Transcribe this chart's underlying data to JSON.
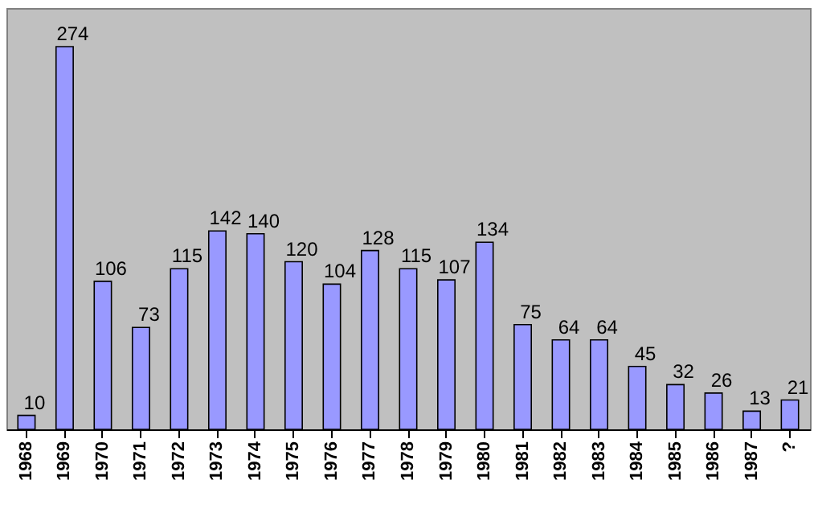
{
  "chart_data": {
    "type": "bar",
    "categories": [
      "1968",
      "1969",
      "1970",
      "1971",
      "1972",
      "1973",
      "1974",
      "1975",
      "1976",
      "1977",
      "1978",
      "1979",
      "1980",
      "1981",
      "1982",
      "1983",
      "1984",
      "1985",
      "1986",
      "1987",
      "?"
    ],
    "values": [
      10,
      274,
      106,
      73,
      115,
      142,
      140,
      120,
      104,
      128,
      115,
      107,
      134,
      75,
      64,
      64,
      45,
      32,
      26,
      13,
      21
    ],
    "color": "#9999ff",
    "data_labels": true,
    "tick_labels": "x",
    "grid": false
  }
}
